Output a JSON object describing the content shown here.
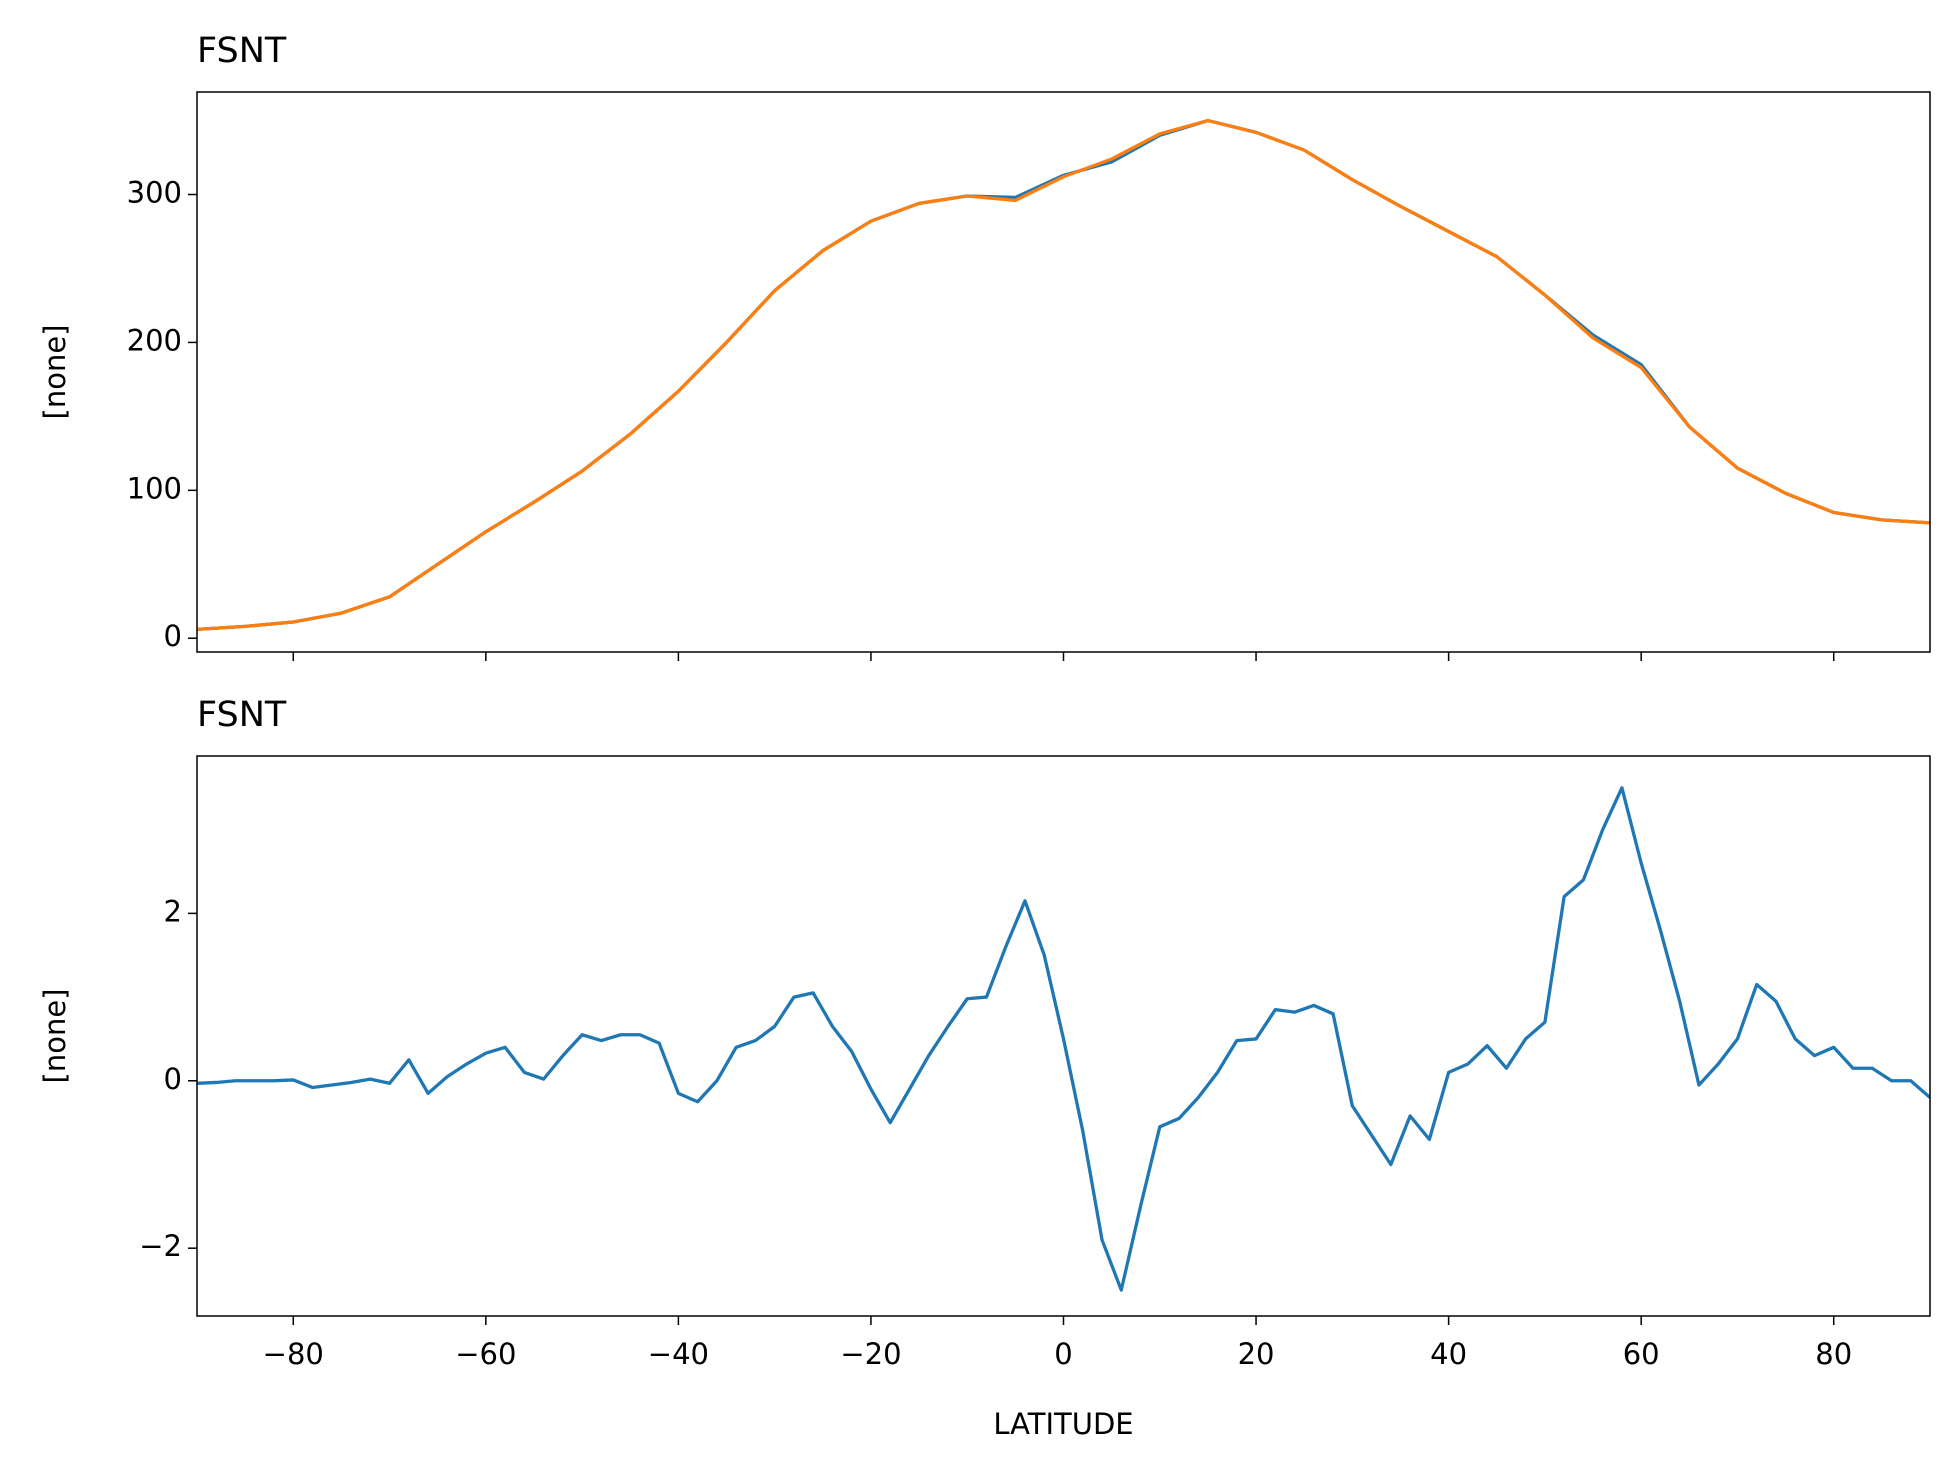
{
  "chart_data": [
    {
      "type": "line",
      "title": "FSNT",
      "ylabel": "[none]",
      "x": [
        -90,
        -85,
        -80,
        -75,
        -70,
        -65,
        -60,
        -55,
        -50,
        -45,
        -40,
        -35,
        -30,
        -25,
        -20,
        -15,
        -10,
        -5,
        0,
        5,
        10,
        15,
        20,
        25,
        30,
        35,
        40,
        45,
        50,
        55,
        60,
        65,
        70,
        75,
        80,
        85,
        90
      ],
      "series": [
        {
          "color": "#1f77b4",
          "values": [
            6,
            8,
            11,
            17,
            28,
            50,
            72,
            92,
            113,
            138,
            167,
            200,
            235,
            262,
            282,
            294,
            299,
            298,
            313,
            322,
            340,
            350,
            342,
            330,
            310,
            292,
            275,
            258,
            232,
            205,
            185,
            143,
            115,
            98,
            85,
            80,
            78
          ]
        },
        {
          "color": "#ff7f0e",
          "values": [
            6,
            8,
            11,
            17,
            28,
            50,
            72,
            92,
            113,
            138,
            167,
            200,
            235,
            262,
            282,
            294,
            299,
            296,
            312,
            324,
            341,
            350,
            342,
            330,
            310,
            292,
            275,
            258,
            232,
            203,
            183,
            143,
            115,
            98,
            85,
            80,
            78
          ]
        }
      ],
      "xlim": [
        -90,
        90
      ],
      "ylim": [
        -9.3,
        369.3
      ],
      "yticks": [
        0,
        100,
        200,
        300
      ]
    },
    {
      "type": "line",
      "title": "FSNT",
      "ylabel": "[none]",
      "xlabel": "LATITUDE",
      "x": [
        -90,
        -88,
        -86,
        -84,
        -82,
        -80,
        -78,
        -76,
        -74,
        -72,
        -70,
        -68,
        -66,
        -64,
        -62,
        -60,
        -58,
        -56,
        -54,
        -52,
        -50,
        -48,
        -46,
        -44,
        -42,
        -40,
        -38,
        -36,
        -34,
        -32,
        -30,
        -28,
        -26,
        -24,
        -22,
        -20,
        -18,
        -16,
        -14,
        -12,
        -10,
        -8,
        -6,
        -4,
        -2,
        0,
        2,
        4,
        6,
        8,
        10,
        12,
        14,
        16,
        18,
        20,
        22,
        24,
        26,
        28,
        30,
        32,
        34,
        36,
        38,
        40,
        42,
        44,
        46,
        48,
        50,
        52,
        54,
        56,
        58,
        60,
        62,
        64,
        66,
        68,
        70,
        72,
        74,
        76,
        78,
        80,
        82,
        84,
        86,
        88,
        90
      ],
      "series": [
        {
          "color": "#1f77b4",
          "values": [
            -0.03,
            -0.02,
            0,
            0,
            0,
            0.01,
            -0.08,
            -0.05,
            -0.02,
            0.02,
            -0.03,
            0.25,
            -0.15,
            0.05,
            0.2,
            0.33,
            0.4,
            0.1,
            0.02,
            0.3,
            0.55,
            0.48,
            0.55,
            0.55,
            0.45,
            -0.15,
            -0.25,
            0,
            0.4,
            0.48,
            0.65,
            1.0,
            1.05,
            0.65,
            0.35,
            -0.1,
            -0.5,
            -0.1,
            0.3,
            0.65,
            0.98,
            1.0,
            1.6,
            2.15,
            1.5,
            0.5,
            -0.6,
            -1.9,
            -2.5,
            -1.5,
            -0.55,
            -0.45,
            -0.2,
            0.1,
            0.48,
            0.5,
            0.85,
            0.82,
            0.9,
            0.8,
            -0.3,
            -0.65,
            -1.0,
            -0.42,
            -0.7,
            0.1,
            0.2,
            0.42,
            0.15,
            0.5,
            0.7,
            2.2,
            2.4,
            3.0,
            3.5,
            2.6,
            1.8,
            0.95,
            -0.05,
            0.2,
            0.5,
            1.15,
            0.95,
            0.5,
            0.3,
            0.4,
            0.15,
            0.15,
            0,
            0,
            -0.2
          ]
        }
      ],
      "xlim": [
        -90,
        90
      ],
      "ylim": [
        -2.81,
        3.88
      ],
      "xticks": [
        {
          "value": -80,
          "label": "−80"
        },
        {
          "value": -60,
          "label": "−60"
        },
        {
          "value": -40,
          "label": "−40"
        },
        {
          "value": -20,
          "label": "−20"
        },
        0,
        20,
        40,
        60,
        80
      ],
      "yticks": [
        {
          "value": -2,
          "label": "−2"
        },
        0,
        2
      ]
    }
  ]
}
